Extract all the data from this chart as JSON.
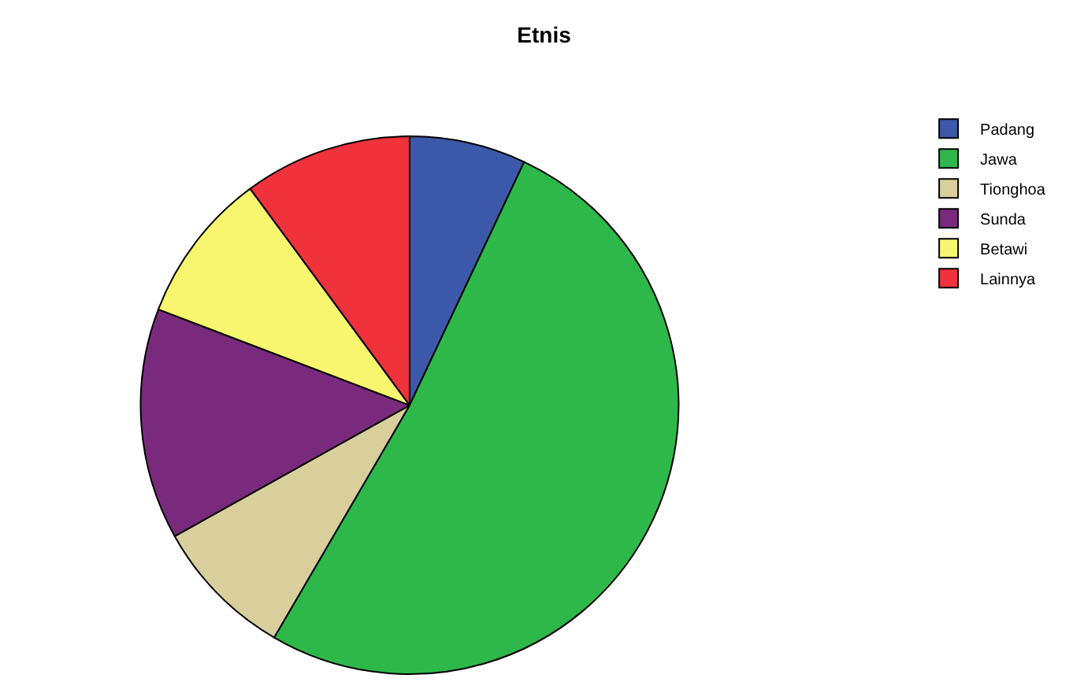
{
  "chart_data": {
    "type": "pie",
    "title": "Etnis",
    "categories": [
      "Padang",
      "Jawa",
      "Tionghoa",
      "Sunda",
      "Betawi",
      "Lainnya"
    ],
    "values": [
      7,
      51.4,
      8.5,
      13.9,
      9.1,
      10.1
    ],
    "colors": [
      "#3c58a8",
      "#2eb84a",
      "#d8cf9d",
      "#7a2a7c",
      "#f8f66e",
      "#ef323b"
    ],
    "legend": "top right"
  }
}
